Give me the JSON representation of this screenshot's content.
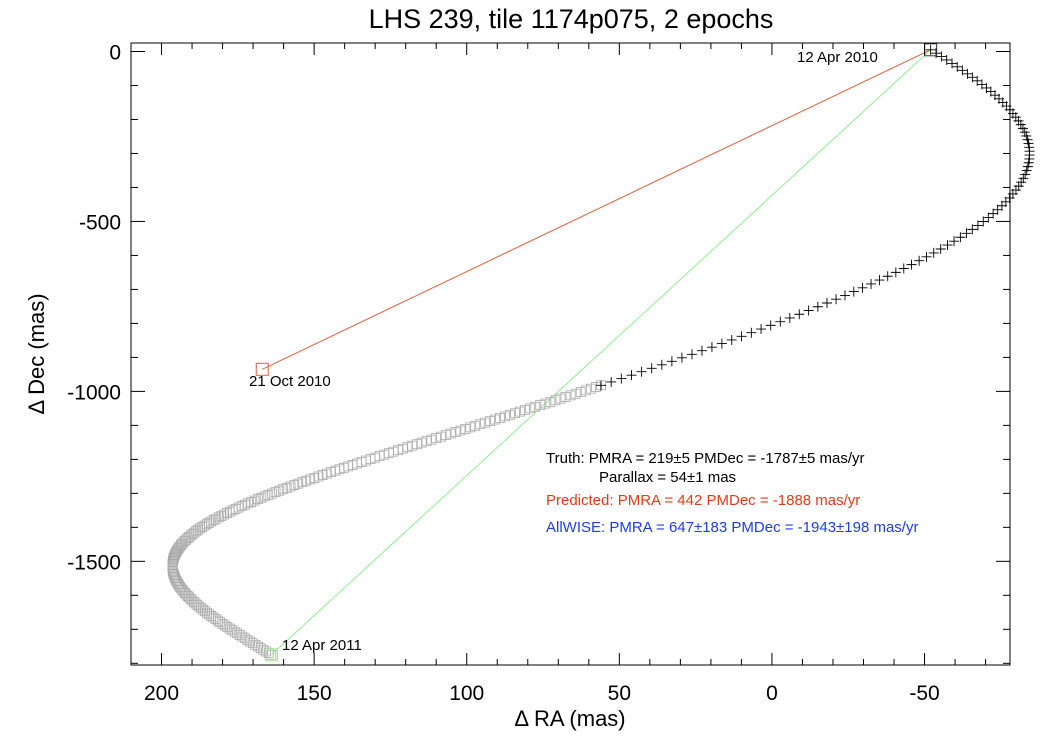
{
  "chart_data": {
    "type": "scatter",
    "title": "LHS 239, tile 1174p075, 2 epochs",
    "xlabel": "Δ RA (mas)",
    "ylabel": "Δ Dec (mas)",
    "xlim": [
      210,
      -78
    ],
    "ylim": [
      -1805,
      25
    ],
    "x_inverted": true,
    "grid": false,
    "x_ticks": [
      200,
      150,
      100,
      50,
      0,
      -50
    ],
    "y_ticks": [
      0,
      -500,
      -1000,
      -1500
    ],
    "x_tick_labels": [
      "200",
      "150",
      "100",
      "50",
      "0",
      "-50"
    ],
    "y_tick_labels": [
      "0",
      "-500",
      "-1000",
      "-1500"
    ],
    "epochs": [
      {
        "label": "12 Apr 2010",
        "x": -52,
        "y": 5
      },
      {
        "label": "21 Oct 2010",
        "x": 167,
        "y": -935
      },
      {
        "label": "12 Apr 2011",
        "x": 164,
        "y": -1775
      }
    ],
    "series": [
      {
        "role": "predicted-track-first-half-year",
        "marker": "plus",
        "color": "#000000"
      },
      {
        "role": "predicted-track-second-half-year",
        "marker": "square",
        "color": "#aaaaaa"
      },
      {
        "role": "predicted-motion-line",
        "color": "#e0603f",
        "points": [
          [
            -52,
            5
          ],
          [
            167,
            -935
          ]
        ]
      },
      {
        "role": "allwise-motion-line",
        "color": "#90ee90",
        "points": [
          [
            -52,
            5
          ],
          [
            164,
            -1775
          ]
        ]
      }
    ],
    "annotations": [
      {
        "text": "Truth: PMRA = 219±5   PMDec = -1787±5 mas/yr",
        "color": "#000000"
      },
      {
        "text": "Parallax = 54±1 mas",
        "color": "#000000"
      },
      {
        "text": "Predicted: PMRA = 442   PMDec = -1888 mas/yr",
        "color": "#e33b1a"
      },
      {
        "text": "AllWISE: PMRA = 647±183   PMDec = -1943±198 mas/yr",
        "color": "#1f3de6"
      }
    ],
    "track_model": {
      "pm_ra": 219,
      "pm_dec": -1787,
      "parallax": 54,
      "points_per_year": 360
    }
  }
}
